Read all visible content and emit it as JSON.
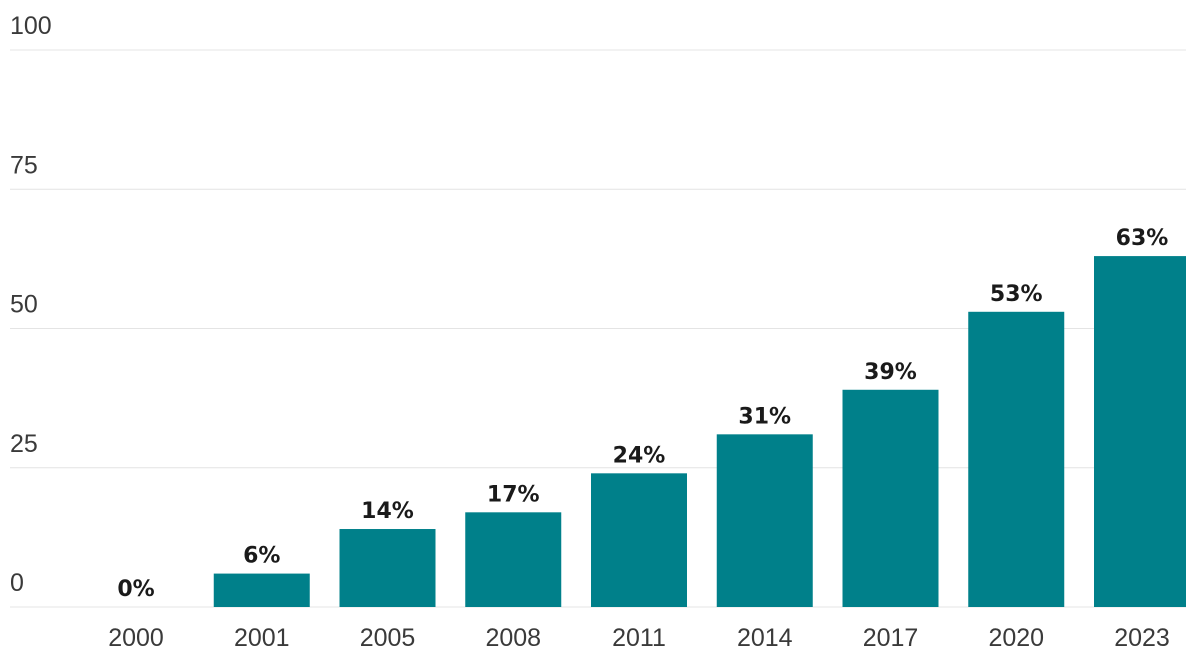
{
  "chart_data": {
    "type": "bar",
    "categories": [
      "2000",
      "2001",
      "2005",
      "2008",
      "2011",
      "2014",
      "2017",
      "2020",
      "2023"
    ],
    "values": [
      0,
      6,
      14,
      17,
      24,
      31,
      39,
      53,
      63
    ],
    "data_labels": [
      "0%",
      "6%",
      "14%",
      "17%",
      "24%",
      "31%",
      "39%",
      "53%",
      "63%"
    ],
    "y_ticks": [
      "0",
      "25",
      "50",
      "75",
      "100"
    ],
    "ylim": [
      0,
      100
    ],
    "grid": true,
    "bar_color": "#00808a"
  }
}
